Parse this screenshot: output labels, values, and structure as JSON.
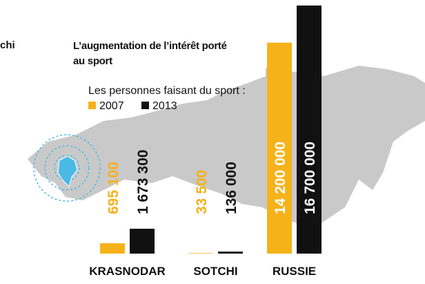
{
  "edge_fragment": "chi",
  "chart_data": {
    "type": "bar",
    "title": "L’augmentation de l’intérêt porté au sport",
    "subtitle": "Les personnes faisant du sport :",
    "categories": [
      "KRASNODAR",
      "SOTCHI",
      "RUSSIE"
    ],
    "series": [
      {
        "name": "2007",
        "color": "#f5b21b",
        "values": [
          695100,
          33500,
          14200000
        ],
        "value_labels": [
          "695 100",
          "33 500",
          "14 200 000"
        ]
      },
      {
        "name": "2013",
        "color": "#111111",
        "values": [
          1673300,
          136000,
          16700000
        ],
        "value_labels": [
          "1 673 300",
          "136 000",
          "16 700 000"
        ]
      }
    ]
  }
}
